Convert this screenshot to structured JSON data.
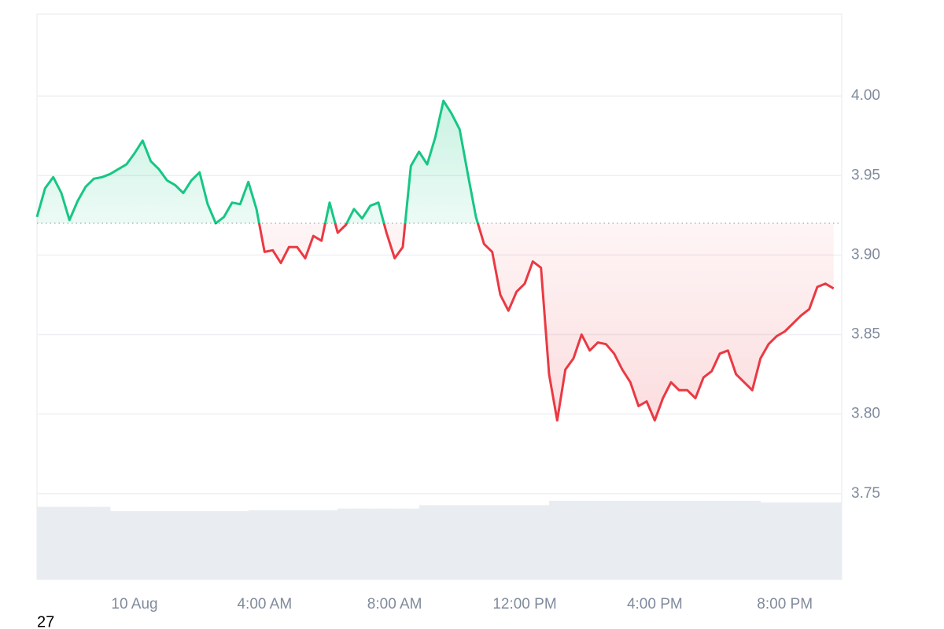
{
  "chart_data": {
    "type": "line",
    "x": [
      "9 Aug 21:00",
      "9 Aug 21:15",
      "9 Aug 21:30",
      "9 Aug 21:45",
      "9 Aug 22:00",
      "9 Aug 22:15",
      "9 Aug 22:30",
      "9 Aug 22:45",
      "9 Aug 23:00",
      "9 Aug 23:15",
      "9 Aug 23:30",
      "9 Aug 23:45",
      "10 Aug 00:00",
      "10 Aug 00:15",
      "10 Aug 00:30",
      "10 Aug 00:45",
      "10 Aug 01:00",
      "10 Aug 01:15",
      "10 Aug 01:30",
      "10 Aug 01:45",
      "10 Aug 02:00",
      "10 Aug 02:15",
      "10 Aug 02:30",
      "10 Aug 02:45",
      "10 Aug 03:00",
      "10 Aug 03:15",
      "10 Aug 03:30",
      "10 Aug 03:45",
      "10 Aug 04:00",
      "10 Aug 04:15",
      "10 Aug 04:30",
      "10 Aug 04:45",
      "10 Aug 05:00",
      "10 Aug 05:15",
      "10 Aug 05:30",
      "10 Aug 05:45",
      "10 Aug 06:00",
      "10 Aug 06:15",
      "10 Aug 06:30",
      "10 Aug 06:45",
      "10 Aug 07:00",
      "10 Aug 07:15",
      "10 Aug 07:30",
      "10 Aug 07:45",
      "10 Aug 08:00",
      "10 Aug 08:15",
      "10 Aug 08:30",
      "10 Aug 08:45",
      "10 Aug 09:00",
      "10 Aug 09:15",
      "10 Aug 09:30",
      "10 Aug 09:45",
      "10 Aug 10:00",
      "10 Aug 10:15",
      "10 Aug 10:30",
      "10 Aug 10:45",
      "10 Aug 11:00",
      "10 Aug 11:15",
      "10 Aug 11:30",
      "10 Aug 11:45",
      "10 Aug 12:00",
      "10 Aug 12:15",
      "10 Aug 12:30",
      "10 Aug 12:45",
      "10 Aug 13:00",
      "10 Aug 13:15",
      "10 Aug 13:30",
      "10 Aug 13:45",
      "10 Aug 14:00",
      "10 Aug 14:15",
      "10 Aug 14:30",
      "10 Aug 14:45",
      "10 Aug 15:00",
      "10 Aug 15:15",
      "10 Aug 15:30",
      "10 Aug 15:45",
      "10 Aug 16:00",
      "10 Aug 16:15",
      "10 Aug 16:30",
      "10 Aug 16:45",
      "10 Aug 17:00",
      "10 Aug 17:15",
      "10 Aug 17:30",
      "10 Aug 17:45",
      "10 Aug 18:00",
      "10 Aug 18:15",
      "10 Aug 18:30",
      "10 Aug 18:45",
      "10 Aug 19:00",
      "10 Aug 19:15",
      "10 Aug 19:30",
      "10 Aug 19:45",
      "10 Aug 20:00",
      "10 Aug 20:15",
      "10 Aug 20:30",
      "10 Aug 20:45",
      "10 Aug 21:00",
      "10 Aug 21:15",
      "10 Aug 21:30"
    ],
    "series": [
      {
        "values": [
          3.924,
          3.942,
          3.949,
          3.939,
          3.922,
          3.934,
          3.943,
          3.948,
          3.949,
          3.951,
          3.954,
          3.957,
          3.964,
          3.972,
          3.959,
          3.954,
          3.947,
          3.944,
          3.939,
          3.947,
          3.952,
          3.932,
          3.92,
          3.924,
          3.933,
          3.932,
          3.946,
          3.929,
          3.902,
          3.903,
          3.895,
          3.905,
          3.905,
          3.898,
          3.912,
          3.909,
          3.933,
          3.914,
          3.919,
          3.929,
          3.923,
          3.931,
          3.933,
          3.914,
          3.898,
          3.905,
          3.956,
          3.965,
          3.957,
          3.974,
          3.997,
          3.989,
          3.979,
          3.951,
          3.924,
          3.907,
          3.902,
          3.875,
          3.865,
          3.877,
          3.882,
          3.896,
          3.892,
          3.825,
          3.796,
          3.828,
          3.835,
          3.85,
          3.84,
          3.845,
          3.844,
          3.838,
          3.828,
          3.82,
          3.805,
          3.808,
          3.796,
          3.81,
          3.82,
          3.815,
          3.815,
          3.81,
          3.823,
          3.827,
          3.838,
          3.84,
          3.825,
          3.82,
          3.815,
          3.835,
          3.844,
          3.849,
          3.852,
          3.857,
          3.862,
          3.866,
          3.88,
          3.882,
          3.879
        ]
      }
    ],
    "volumes": [
      84,
      84,
      84,
      84,
      84,
      84,
      84,
      84,
      84,
      79,
      79,
      79,
      79,
      79,
      79,
      79,
      79,
      79,
      79,
      79,
      79,
      79,
      79,
      79,
      79,
      79,
      80,
      80,
      80,
      80,
      80,
      80,
      80,
      80,
      80,
      80,
      80,
      82,
      82,
      82,
      82,
      82,
      82,
      82,
      82,
      82,
      82,
      86,
      86,
      86,
      86,
      86,
      86,
      86,
      86,
      86,
      86,
      86,
      86,
      86,
      86,
      86,
      86,
      91,
      91,
      91,
      91,
      91,
      91,
      91,
      91,
      91,
      91,
      91,
      91,
      91,
      91,
      91,
      91,
      91,
      91,
      91,
      91,
      91,
      91,
      91,
      91,
      91,
      91,
      89,
      89,
      89,
      89,
      89,
      89,
      89,
      89,
      89,
      89
    ],
    "volume_ylim": [
      0,
      100
    ],
    "baseline": 3.92,
    "up_color": "#16c784",
    "down_color": "#ea3943",
    "volume_color": "#e9edf2",
    "xlim": [
      "9 Aug 21:00",
      "10 Aug 21:45"
    ],
    "xticks": [
      {
        "value": "10 Aug 00:00",
        "label": "10 Aug"
      },
      {
        "value": "10 Aug 04:00",
        "label": "4:00 AM"
      },
      {
        "value": "10 Aug 08:00",
        "label": "8:00 AM"
      },
      {
        "value": "10 Aug 12:00",
        "label": "12:00 PM"
      },
      {
        "value": "10 Aug 16:00",
        "label": "4:00 PM"
      },
      {
        "value": "10 Aug 20:00",
        "label": "8:00 PM"
      }
    ],
    "ylim": [
      3.696,
      4.0515
    ],
    "yticks": [
      {
        "value": 3.75,
        "label": "3.75"
      },
      {
        "value": 3.8,
        "label": "3.80"
      },
      {
        "value": 3.85,
        "label": "3.85"
      },
      {
        "value": 3.9,
        "label": "3.90"
      },
      {
        "value": 3.95,
        "label": "3.95"
      },
      {
        "value": 4,
        "label": "4.00"
      }
    ],
    "grid": true
  },
  "footer": {
    "text": "27"
  }
}
